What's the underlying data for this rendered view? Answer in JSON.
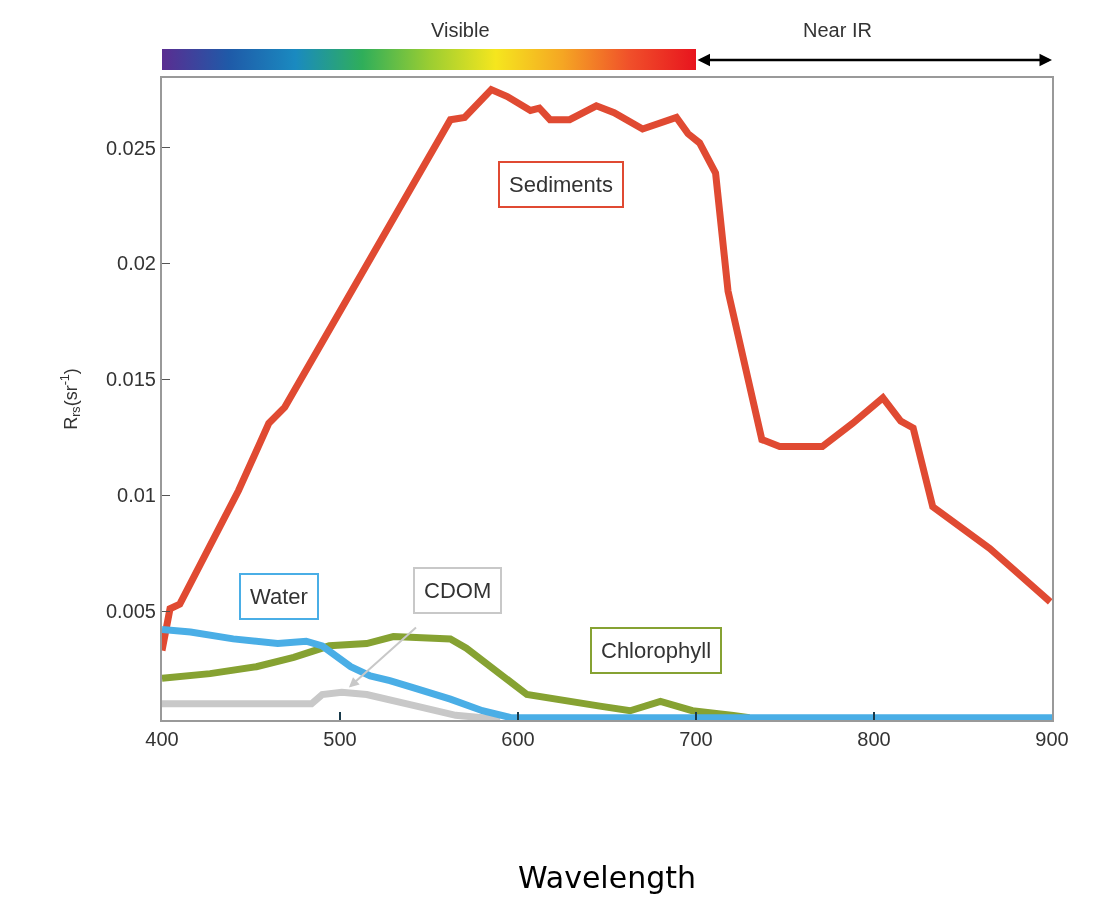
{
  "chart_data": {
    "type": "line",
    "xlabel": "Wavelength",
    "ylabel": "R$_{rs}$(sr$^{-1}$)",
    "xlim": [
      400,
      900
    ],
    "xticks": [
      400,
      500,
      600,
      700,
      800,
      900
    ],
    "ylim": [
      0.0003,
      0.028
    ],
    "yticks": [
      0.005,
      0.01,
      0.015,
      0.02,
      0.025
    ],
    "grid": false,
    "legend": false,
    "marker": "none",
    "line_style": "solid",
    "annotations": [
      "Visible",
      "Near IR"
    ],
    "series": [
      {
        "name": "Sediments",
        "color": "#e04a32",
        "x": [
          400,
          404.5,
          410,
          443,
          460,
          469,
          562,
          570,
          585,
          594,
          607,
          612,
          618,
          629,
          644,
          654,
          670,
          689,
          695.5,
          702,
          711,
          718,
          737,
          747,
          771,
          788,
          805,
          815,
          822,
          833,
          865,
          899
        ],
        "values": [
          0.0033,
          0.0051,
          0.0053,
          0.0102,
          0.0131,
          0.0138,
          0.0262,
          0.0263,
          0.0275,
          0.0272,
          0.0266,
          0.0267,
          0.0262,
          0.0262,
          0.0268,
          0.0265,
          0.0258,
          0.0263,
          0.0256,
          0.0252,
          0.0239,
          0.0188,
          0.0124,
          0.0121,
          0.0121,
          0.0131,
          0.0142,
          0.0132,
          0.0129,
          0.0095,
          0.0077,
          0.0054
        ]
      },
      {
        "name": "Chlorophyll",
        "color": "#86a232",
        "x": [
          400,
          427,
          453,
          474,
          494,
          515,
          530,
          562,
          571,
          605,
          646,
          663,
          680,
          698,
          721,
          730
        ],
        "values": [
          0.0021,
          0.0023,
          0.0026,
          0.003,
          0.0035,
          0.0036,
          0.0039,
          0.0038,
          0.0034,
          0.0014,
          0.0009,
          0.0007,
          0.0011,
          0.0007,
          0.0005,
          0.0004
        ]
      },
      {
        "name": "CDOM",
        "color": "#c8c8c8",
        "x": [
          400,
          484,
          490,
          501,
          515,
          543,
          565,
          580,
          590
        ],
        "values": [
          0.001,
          0.001,
          0.0014,
          0.0015,
          0.0014,
          0.0009,
          0.0005,
          0.0004,
          0.0004
        ]
      },
      {
        "name": "Water",
        "color": "#4aaee6",
        "x": [
          400,
          416,
          440,
          465,
          481,
          490,
          506,
          517,
          528,
          541,
          562,
          580,
          596,
          700,
          800,
          900
        ],
        "values": [
          0.0042,
          0.0041,
          0.0038,
          0.0036,
          0.0037,
          0.0035,
          0.0026,
          0.0022,
          0.002,
          0.0017,
          0.0012,
          0.0007,
          0.0004,
          0.0004,
          0.0004,
          0.0004
        ]
      }
    ]
  }
}
